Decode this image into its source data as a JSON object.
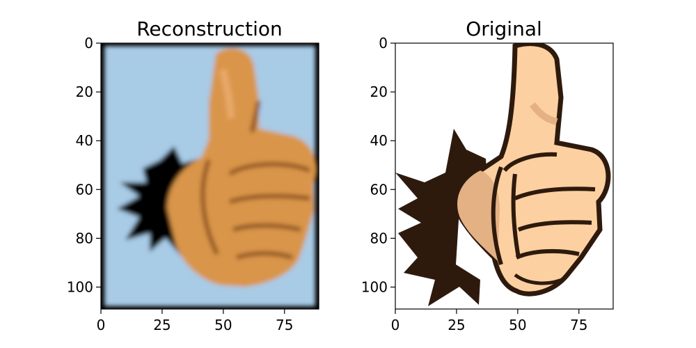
{
  "chart_data": [
    {
      "type": "image",
      "title": "Reconstruction",
      "xlim": [
        0,
        89
      ],
      "ylim": [
        109,
        0
      ],
      "xticks": [
        0,
        25,
        50,
        75
      ],
      "yticks": [
        0,
        20,
        40,
        60,
        80,
        100
      ],
      "image": {
        "style": "blurred",
        "background_color": "#a8cbe6",
        "border_color": "#000000",
        "burst_color": "#000000",
        "skin_color": "#d9954a",
        "outline_color": "#8a4d1e",
        "highlight_color": "#e8a96a"
      }
    },
    {
      "type": "image",
      "title": "Original",
      "xlim": [
        0,
        89
      ],
      "ylim": [
        109,
        0
      ],
      "xticks": [
        0,
        25,
        50,
        75
      ],
      "yticks": [
        0,
        20,
        40,
        60,
        80,
        100
      ],
      "image": {
        "style": "sharp",
        "background_color": "#ffffff",
        "burst_color": "#2e1a0d",
        "skin_color": "#fcd0a0",
        "shadow_color": "#e4b184",
        "outline_color": "#2e1a0d"
      }
    }
  ]
}
